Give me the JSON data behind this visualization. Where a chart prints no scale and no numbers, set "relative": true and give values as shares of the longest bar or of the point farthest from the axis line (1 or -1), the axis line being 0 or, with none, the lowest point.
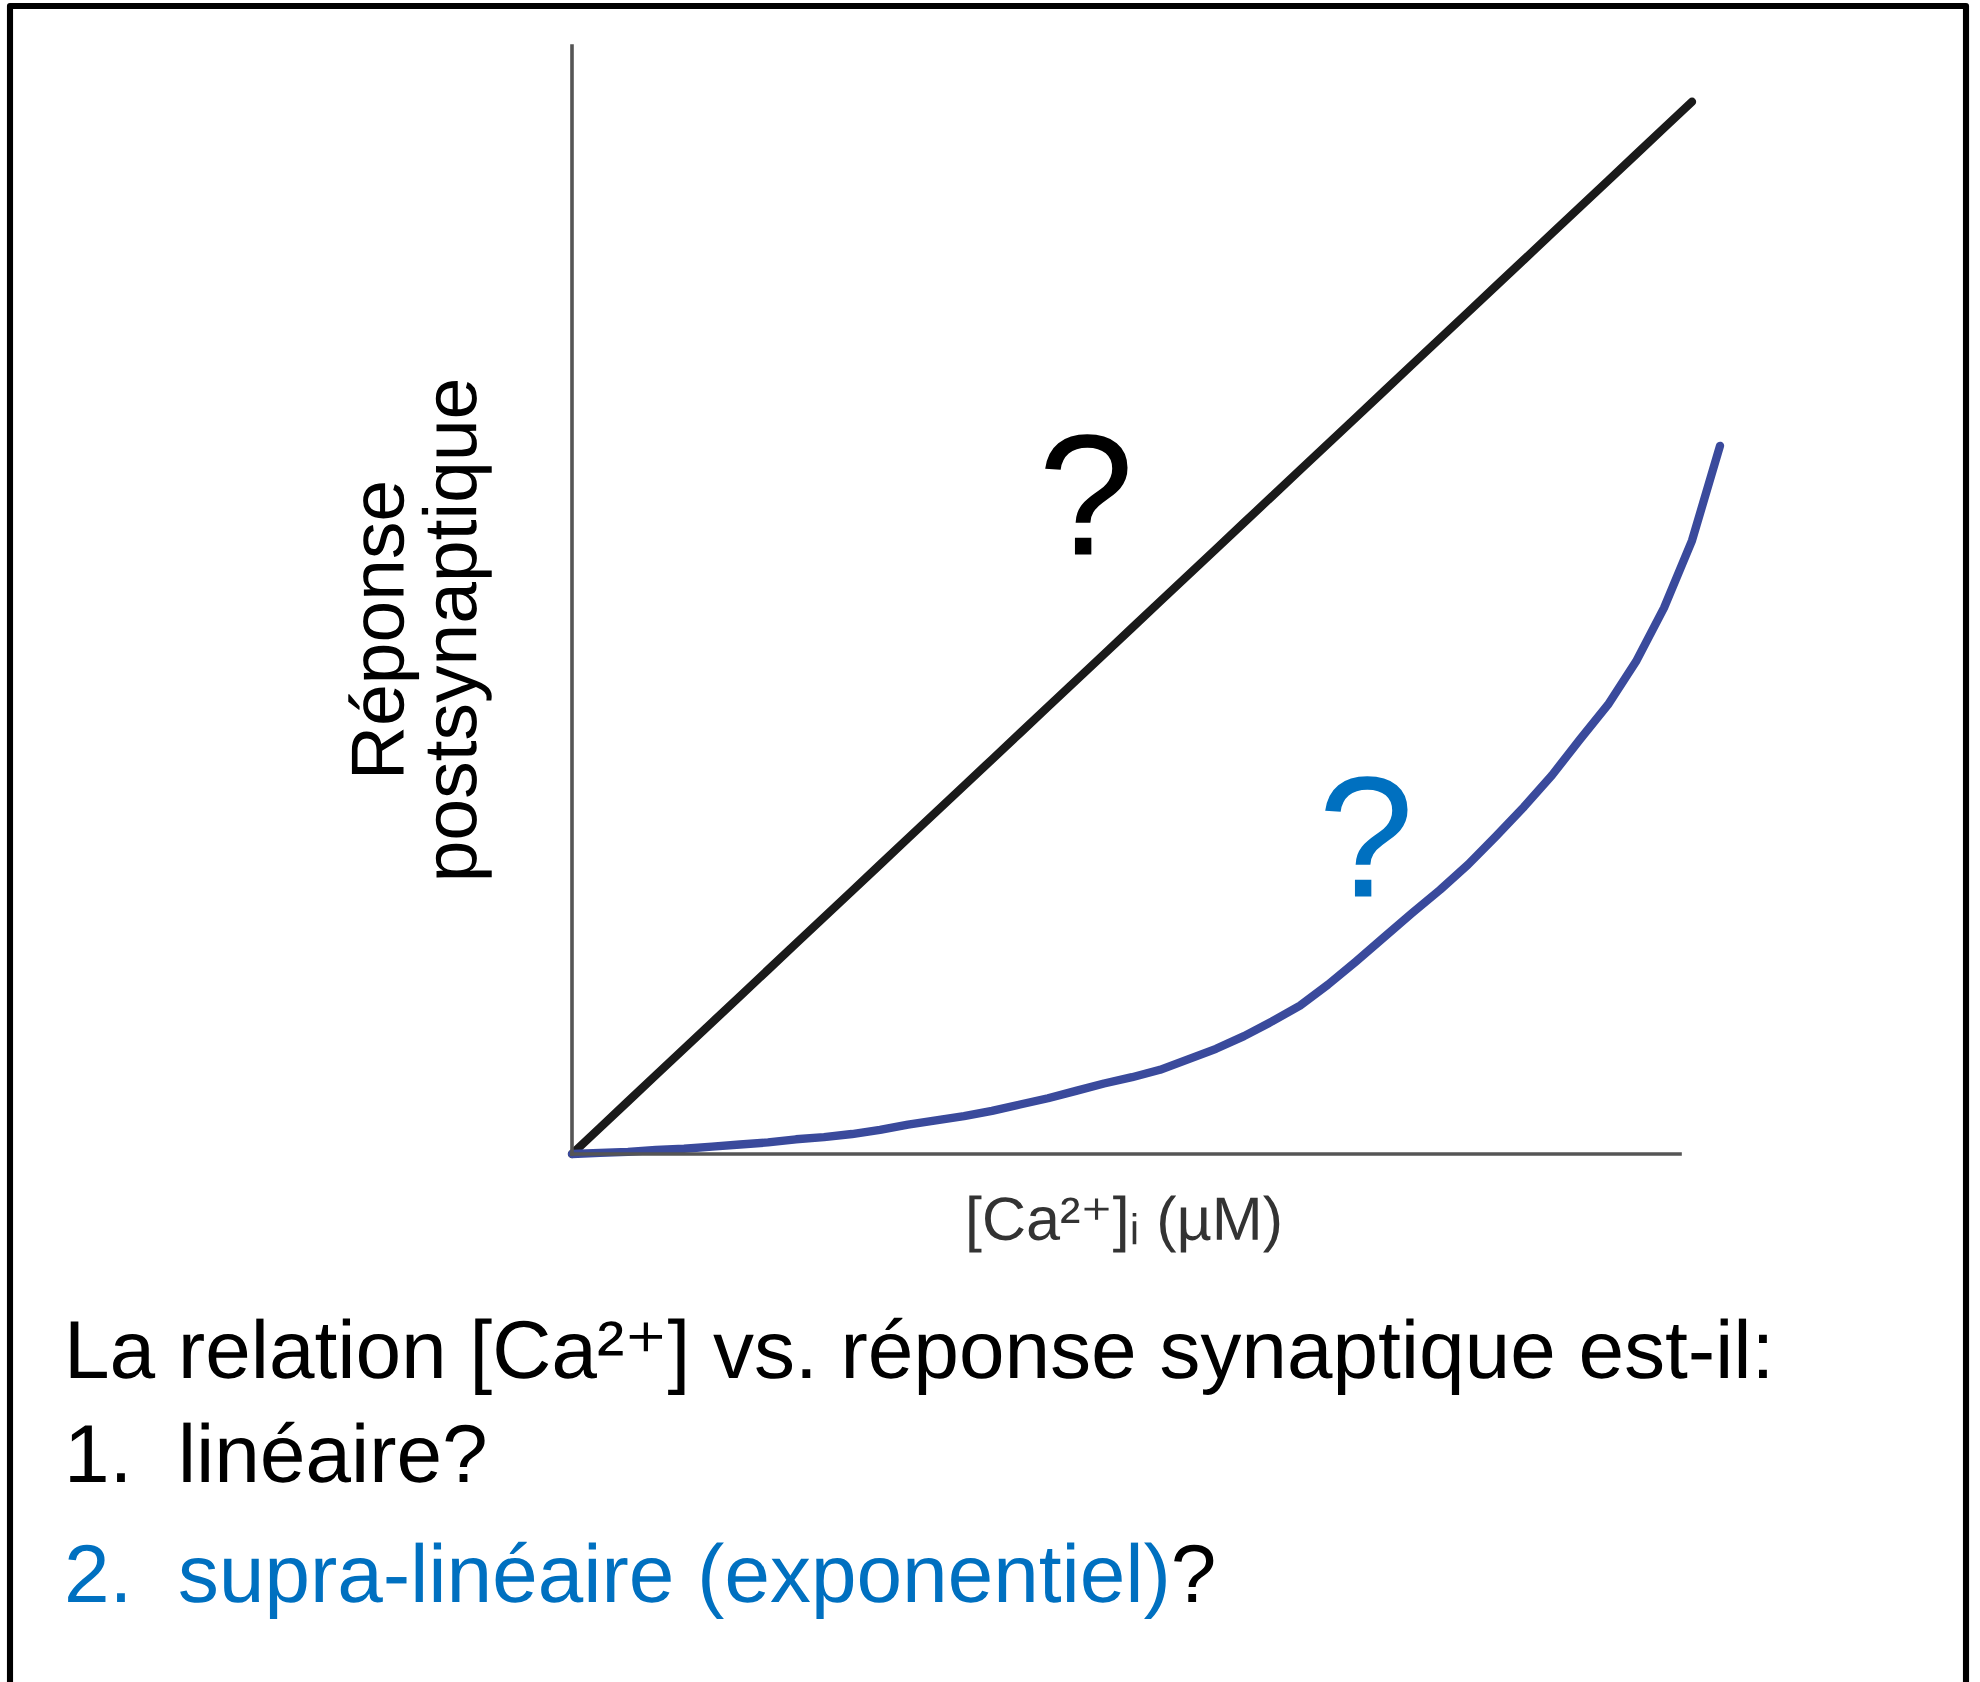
{
  "chart_data": {
    "type": "line",
    "relative": true,
    "xlabel": "[Ca²⁺]ᵢ (µM)",
    "ylabel": "Réponse\npostsynaptique",
    "categories": [
      null,
      null,
      null,
      null,
      null,
      null,
      null,
      null,
      null,
      null,
      null,
      null,
      null,
      null,
      null,
      null,
      null,
      null,
      null,
      null,
      null,
      null,
      null,
      null,
      null,
      null,
      null,
      null,
      null,
      null,
      null,
      null,
      null,
      null,
      null,
      null,
      null,
      null,
      null,
      null,
      null,
      null
    ],
    "series": [
      {
        "color": "#1a1a1a",
        "values": [
          0,
          0.025,
          0.05,
          0.075,
          0.1,
          0.125,
          0.15,
          0.175,
          0.2,
          0.225,
          0.25,
          0.275,
          0.3,
          0.325,
          0.35,
          0.375,
          0.4,
          0.425,
          0.45,
          0.475,
          0.5,
          0.525,
          0.55,
          0.575,
          0.6,
          0.625,
          0.65,
          0.675,
          0.7,
          0.725,
          0.75,
          0.775,
          0.8,
          0.825,
          0.85,
          0.875,
          0.9,
          0.925,
          0.95,
          0.975,
          1,
          null
        ]
      },
      {
        "color": "#3a4a9c",
        "values": [
          0,
          0.001,
          0.002,
          0.004,
          0.005,
          0.007,
          0.009,
          0.011,
          0.014,
          0.016,
          0.019,
          0.023,
          0.028,
          0.032,
          0.036,
          0.041,
          0.047,
          0.053,
          0.06,
          0.067,
          0.073,
          0.08,
          0.09,
          0.1,
          0.112,
          0.126,
          0.141,
          0.161,
          0.183,
          0.206,
          0.229,
          0.251,
          0.275,
          0.302,
          0.33,
          0.36,
          0.394,
          0.427,
          0.468,
          0.519,
          0.583,
          0.673
        ]
      }
    ],
    "annotations": [
      "?",
      "?",
      "La relation [Ca²⁺] vs. réponse synaptique est-il:",
      "1.  linéaire?",
      "2.  supra-linéaire (exponentiel)",
      "?"
    ]
  }
}
